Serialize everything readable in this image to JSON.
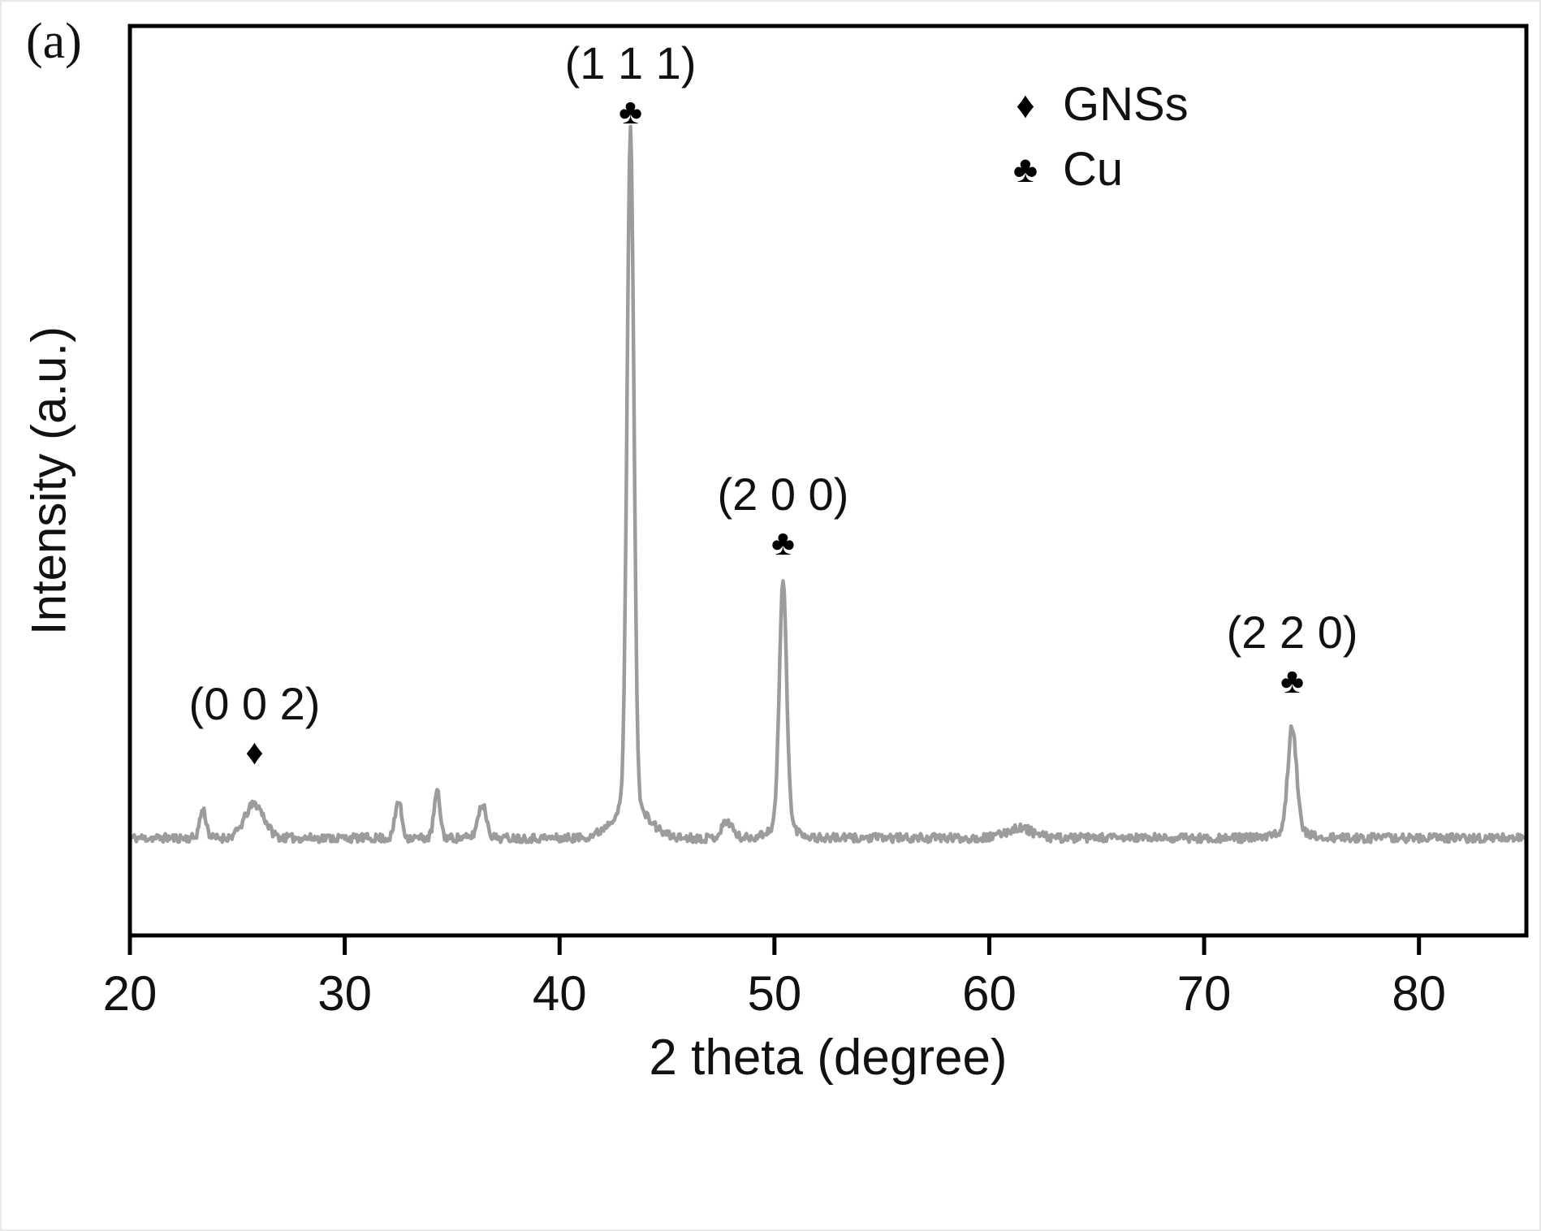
{
  "figure_label": "(a)",
  "chart_data": {
    "type": "line",
    "title": "",
    "xlabel": "2 theta (degree)",
    "ylabel": "Intensity (a.u.)",
    "xlim": [
      20,
      85
    ],
    "x_ticks": [
      20,
      30,
      40,
      50,
      60,
      70,
      80
    ],
    "y_axis_labeled": false,
    "grid": false,
    "line_color": "#9c9c9c",
    "frame_color": "#000000",
    "background": "#ffffff",
    "symbols": {
      "diamond": "♦",
      "club": "♣"
    },
    "peaks": [
      {
        "x": 23.4,
        "height": 0.042,
        "width": 0.15
      },
      {
        "x": 25.8,
        "height": 0.05,
        "width": 0.45
      },
      {
        "x": 32.5,
        "height": 0.055,
        "width": 0.15
      },
      {
        "x": 34.3,
        "height": 0.068,
        "width": 0.14
      },
      {
        "x": 36.4,
        "height": 0.05,
        "width": 0.2
      },
      {
        "x": 43.3,
        "height": 1.0,
        "width": 0.16
      },
      {
        "x": 43.3,
        "height": 0.05,
        "width": 0.8
      },
      {
        "x": 47.8,
        "height": 0.025,
        "width": 0.25
      },
      {
        "x": 50.4,
        "height": 0.36,
        "width": 0.17
      },
      {
        "x": 50.4,
        "height": 0.02,
        "width": 0.6
      },
      {
        "x": 61.4,
        "height": 0.015,
        "width": 0.6
      },
      {
        "x": 74.1,
        "height": 0.155,
        "width": 0.2
      },
      {
        "x": 74.1,
        "height": 0.012,
        "width": 0.6
      }
    ],
    "annotations": [
      {
        "label": "(0 0 2)",
        "symbol": "diamond",
        "x": 25.8
      },
      {
        "label": "(1 1 1)",
        "symbol": "club",
        "x": 43.3
      },
      {
        "label": "(2 0 0)",
        "symbol": "club",
        "x": 50.4
      },
      {
        "label": "(2 2 0)",
        "symbol": "club",
        "x": 74.1
      }
    ],
    "legend": [
      {
        "symbol": "diamond",
        "label": "GNSs"
      },
      {
        "symbol": "club",
        "label": "Cu"
      }
    ]
  }
}
